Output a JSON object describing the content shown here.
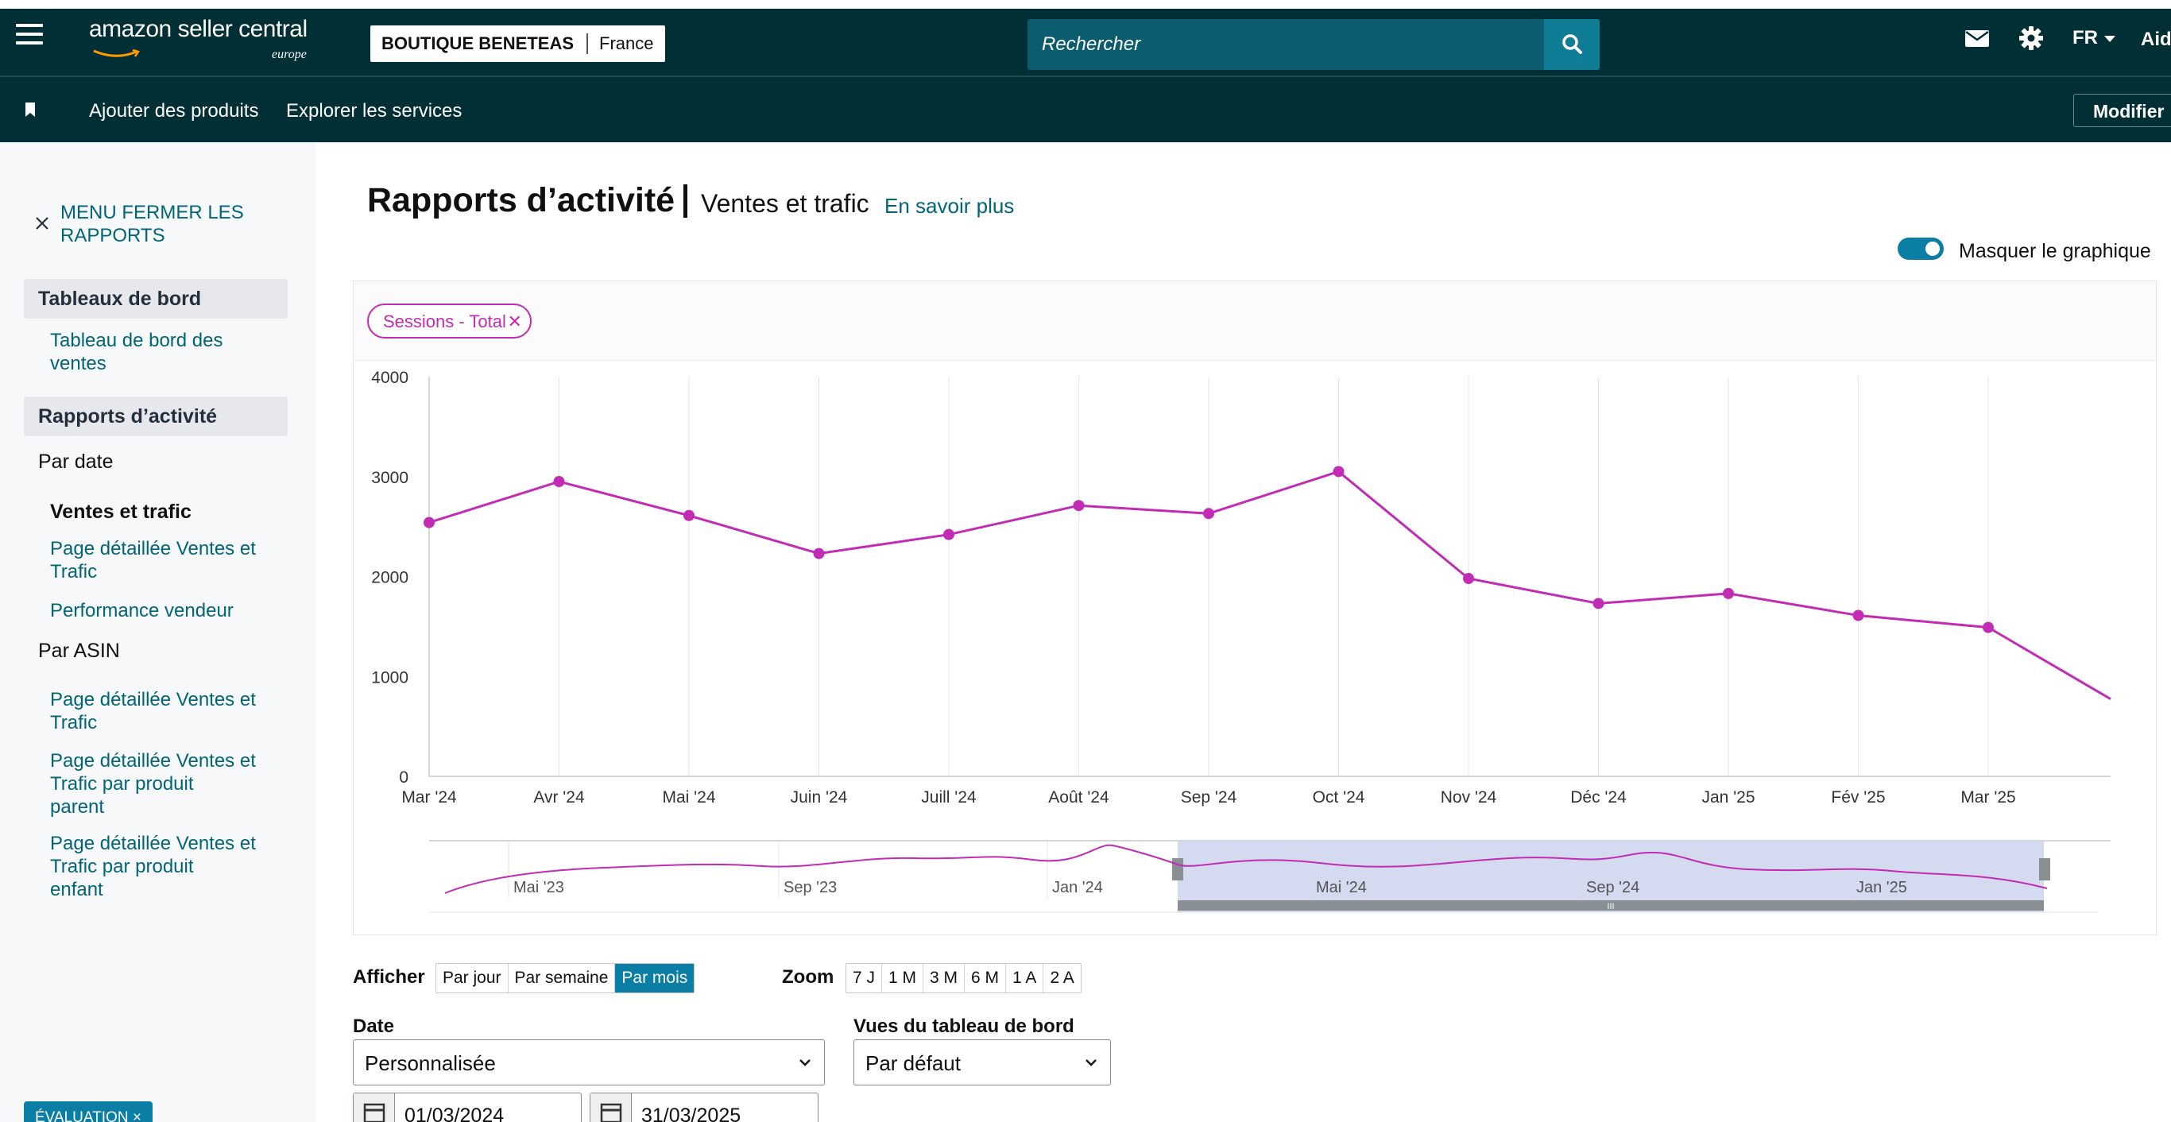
{
  "header": {
    "logo_text": "amazon seller central",
    "logo_sub": "europe",
    "store_name": "BOUTIQUE BENETEAS",
    "store_country": "France",
    "search_placeholder": "Rechercher",
    "language": "FR",
    "help": "Aid"
  },
  "subnav": {
    "links": [
      "Ajouter des produits",
      "Explorer les services"
    ],
    "edit_label": "Modifier"
  },
  "sidebar": {
    "close_label_line1": "MENU FERMER LES",
    "close_label_line2": "RAPPORTS",
    "section_dashboards": "Tableaux de bord",
    "dashboard_link_line1": "Tableau de bord des",
    "dashboard_link_line2": "ventes",
    "section_reports": "Rapports d’activité",
    "by_date": "Par date",
    "current_item": "Ventes et trafic",
    "date_link1_line1": "Page détaillée Ventes et",
    "date_link1_line2": "Trafic",
    "date_link2": "Performance vendeur",
    "by_asin": "Par ASIN",
    "asin_link1_line1": "Page détaillée Ventes et",
    "asin_link1_line2": "Trafic",
    "asin_link2_line1": "Page détaillée Ventes et",
    "asin_link2_line2": "Trafic par produit",
    "asin_link2_line3": "parent",
    "asin_link3_line1": "Page détaillée Ventes et",
    "asin_link3_line2": "Trafic par produit",
    "asin_link3_line3": "enfant",
    "feedback": "ÉVALUATION ×"
  },
  "page": {
    "title": "Rapports d’activité",
    "subtitle": "Ventes et trafic",
    "learn_more": "En savoir plus",
    "toggle_label": "Masquer le graphique",
    "toggle_on": true
  },
  "chart_data": {
    "type": "line",
    "metric_chip": "Sessions - Total",
    "series_color": "#c22bb3",
    "categories": [
      "Mar '24",
      "Avr '24",
      "Mai '24",
      "Juin '24",
      "Juill '24",
      "Août '24",
      "Sep '24",
      "Oct '24",
      "Nov '24",
      "Déc '24",
      "Jan '25",
      "Fév '25",
      "Mar '25"
    ],
    "series": [
      {
        "values": [
          2540,
          2950,
          2610,
          2230,
          2420,
          2710,
          2630,
          3050,
          1980,
          1730,
          1830,
          1610,
          1490
        ]
      }
    ],
    "trailing_value": 730,
    "yticks": [
      0,
      1000,
      2000,
      3000,
      4000
    ],
    "ylim": [
      0,
      4000
    ],
    "grid": true,
    "navigator_labels": [
      "Mai '23",
      "Sep '23",
      "Jan '24",
      "Mai '24",
      "Sep '24",
      "Jan '25"
    ]
  },
  "controls": {
    "display_label": "Afficher",
    "period_options": [
      "Par jour",
      "Par semaine",
      "Par mois"
    ],
    "period_selected": "Par mois",
    "zoom_label": "Zoom",
    "zoom_options": [
      "7 J",
      "1 M",
      "3 M",
      "6 M",
      "1 A",
      "2 A"
    ],
    "date_label": "Date",
    "date_selected": "Personnalisée",
    "views_label": "Vues du tableau de bord",
    "views_selected": "Par défaut",
    "start_date": "01/03/2024",
    "end_date": "31/03/2025"
  }
}
